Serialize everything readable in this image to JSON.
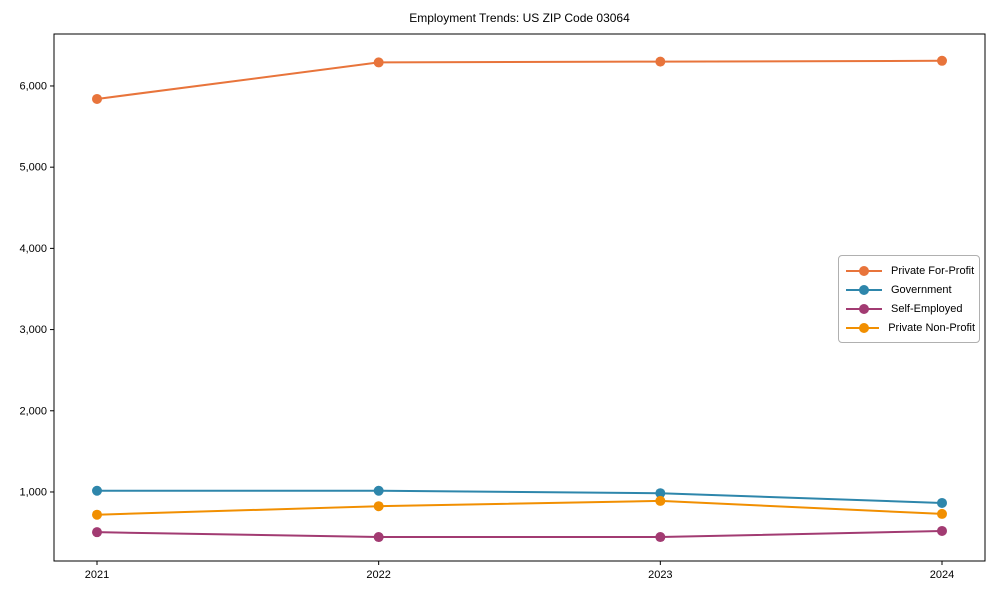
{
  "chart_data": {
    "type": "line",
    "title": "Employment Trends: US ZIP Code 03064",
    "x": [
      "2021",
      "2022",
      "2023",
      "2024"
    ],
    "series": [
      {
        "name": "Private For-Profit",
        "color": "#e8743b",
        "values": [
          5840,
          6290,
          6300,
          6310
        ]
      },
      {
        "name": "Government",
        "color": "#2e86ab",
        "values": [
          1015,
          1015,
          985,
          865
        ]
      },
      {
        "name": "Self-Employed",
        "color": "#a23b72",
        "values": [
          505,
          445,
          445,
          520
        ]
      },
      {
        "name": "Private Non-Profit",
        "color": "#f18f01",
        "values": [
          720,
          825,
          890,
          730
        ]
      }
    ],
    "xlabel": "",
    "ylabel": "",
    "ylim": [
      150,
      6640
    ],
    "yticks": [
      1000,
      2000,
      3000,
      4000,
      5000,
      6000
    ],
    "ytick_labels": [
      "1,000",
      "2,000",
      "3,000",
      "4,000",
      "5,000",
      "6,000"
    ],
    "grid": false,
    "legend_position": "center-right",
    "marker": "circle",
    "axis_color": "#000000"
  }
}
